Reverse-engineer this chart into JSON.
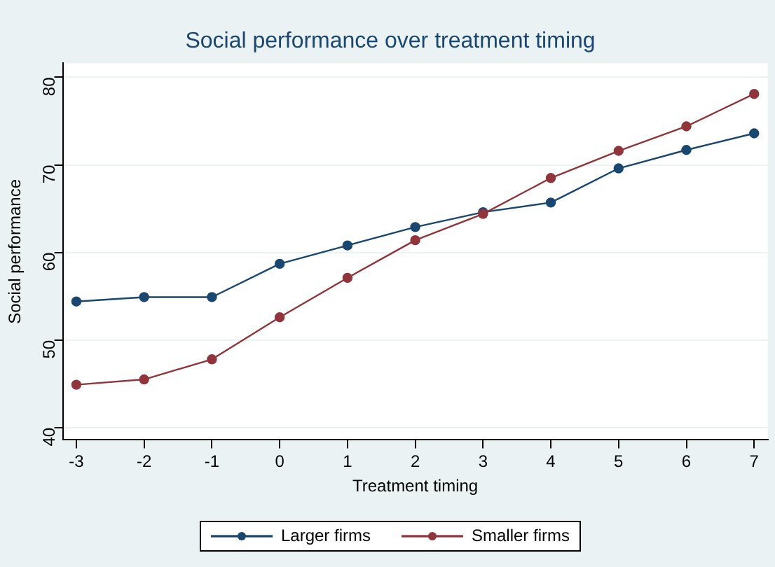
{
  "chart_data": {
    "type": "line",
    "title": "Social performance over treatment timing",
    "xlabel": "Treatment timing",
    "ylabel": "Social performance",
    "x": [
      -3,
      -2,
      -1,
      0,
      1,
      2,
      3,
      4,
      5,
      6,
      7
    ],
    "series": [
      {
        "name": "Larger firms",
        "color": "#1a476f",
        "values": [
          54.4,
          54.9,
          54.9,
          58.7,
          60.8,
          62.9,
          64.6,
          65.7,
          69.6,
          71.7,
          73.6
        ]
      },
      {
        "name": "Smaller firms",
        "color": "#90353b",
        "values": [
          44.9,
          45.5,
          47.8,
          52.6,
          57.1,
          61.4,
          64.4,
          68.5,
          71.6,
          74.4,
          78.1
        ]
      }
    ],
    "xlim": [
      -3.2,
      7.2
    ],
    "xticks": [
      -3,
      -2,
      -1,
      0,
      1,
      2,
      3,
      4,
      5,
      6,
      7
    ],
    "ylim": [
      38.6,
      81.6
    ],
    "yticks": [
      40,
      50,
      60,
      70,
      80
    ],
    "grid": "y",
    "legend": "bottom",
    "marker": "circle",
    "line_style": "solid"
  }
}
